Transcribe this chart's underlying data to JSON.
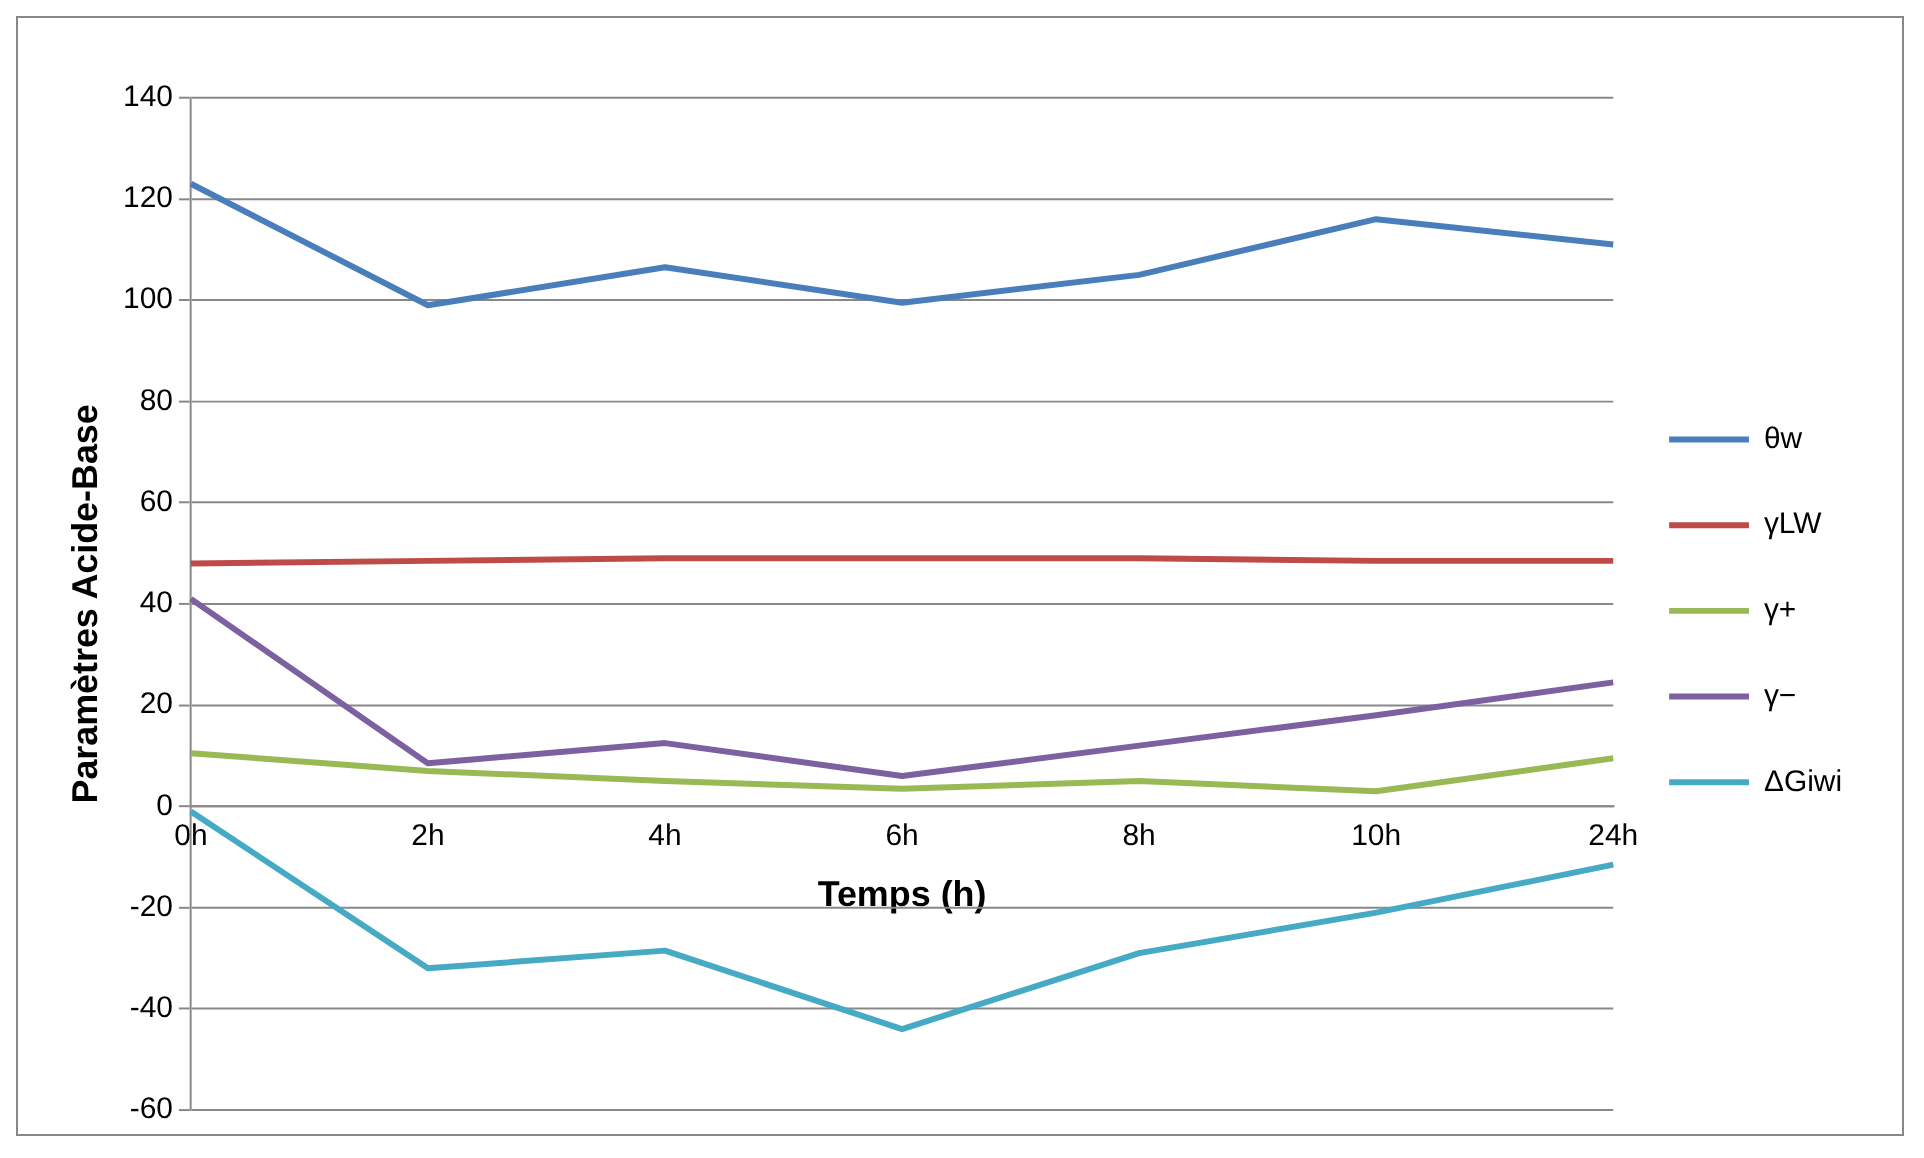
{
  "chart_data": {
    "type": "line",
    "xlabel": "Temps (h)",
    "ylabel": "Paramètres Acide-Base",
    "categories": [
      "0h",
      "2h",
      "4h",
      "6h",
      "8h",
      "10h",
      "24h"
    ],
    "series": [
      {
        "name": "θw",
        "color": "#4a7ebb",
        "values": [
          123,
          99,
          106.5,
          99.5,
          105,
          116,
          111
        ]
      },
      {
        "name": "γLW",
        "color": "#be4b48",
        "values": [
          48,
          48.5,
          49,
          49,
          49,
          48.5,
          48.5
        ]
      },
      {
        "name": "γ+",
        "color": "#98b954",
        "values": [
          10.5,
          7,
          5,
          3.5,
          5,
          3,
          9.5
        ]
      },
      {
        "name": "γ−",
        "color": "#7d60a0",
        "values": [
          41,
          8.5,
          12.5,
          6,
          12,
          18,
          24.5
        ]
      },
      {
        "name": "ΔGiwi",
        "color": "#46aac5",
        "values": [
          -1,
          -32,
          -28.5,
          -44,
          -29,
          -21,
          -11.5
        ]
      }
    ],
    "ylim": [
      -60,
      140
    ],
    "yticks": [
      -60,
      -40,
      -20,
      0,
      20,
      40,
      60,
      80,
      100,
      120,
      140
    ],
    "grid": "y",
    "legend": "right"
  }
}
